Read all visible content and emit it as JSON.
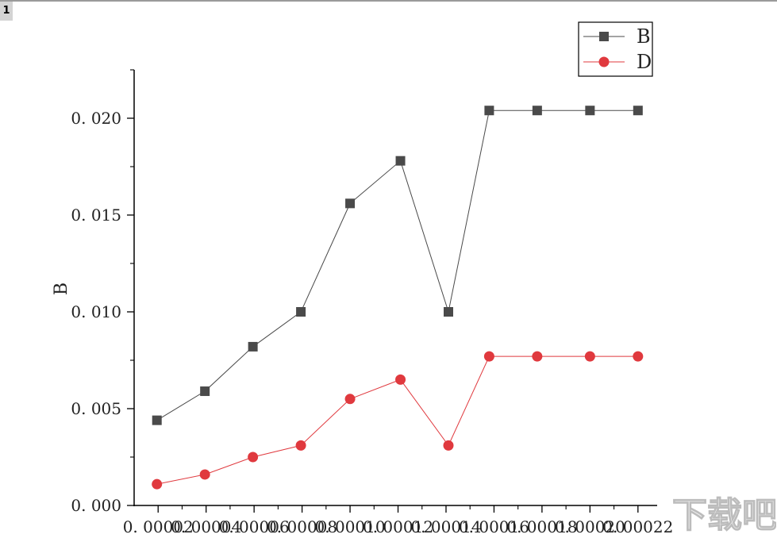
{
  "sheet_tab": "1",
  "chart_data": {
    "type": "line",
    "x": [
      2e-05,
      4e-05,
      6e-05,
      8e-05,
      0.0001,
      0.00012,
      0.00014,
      0.00016,
      0.00018,
      0.0002,
      0.00022
    ],
    "x_points": [
      1.95e-05,
      3.95e-05,
      5.95e-05,
      7.95e-05,
      0.0001,
      0.000121,
      0.000141,
      0.000158,
      0.000178,
      0.0002,
      0.00022
    ],
    "series": [
      {
        "name": "B",
        "color": "#4a4a4a",
        "marker": "square",
        "values": [
          0.0044,
          0.0059,
          0.0082,
          0.01,
          0.0156,
          0.0178,
          0.01,
          0.0204,
          0.0204,
          0.0204,
          0.0204
        ]
      },
      {
        "name": "D",
        "color": "#e0393e",
        "marker": "circle",
        "values": [
          0.0011,
          0.0016,
          0.0025,
          0.0031,
          0.0055,
          0.0065,
          0.0031,
          0.0077,
          0.0077,
          0.0077,
          0.0077
        ]
      }
    ],
    "ylabel": "B",
    "xlabel": "",
    "ylim": [
      0,
      0.0225
    ],
    "xlim": [
      1e-05,
      0.000228
    ],
    "yticks": [
      {
        "value": 0.0,
        "label": "0. 000"
      },
      {
        "value": 0.005,
        "label": "0. 005"
      },
      {
        "value": 0.01,
        "label": "0. 010"
      },
      {
        "value": 0.015,
        "label": "0. 015"
      },
      {
        "value": 0.02,
        "label": "0. 020"
      }
    ],
    "xticks": [
      {
        "value": 2e-05,
        "label": "0. 00002"
      },
      {
        "value": 4e-05,
        "label": "0. 00004"
      },
      {
        "value": 6e-05,
        "label": "0. 00006"
      },
      {
        "value": 8e-05,
        "label": "0. 00008"
      },
      {
        "value": 0.0001,
        "label": "0. 00010"
      },
      {
        "value": 0.00012,
        "label": "0. 00012"
      },
      {
        "value": 0.00014,
        "label": "0. 00014"
      },
      {
        "value": 0.00016,
        "label": "0. 00016"
      },
      {
        "value": 0.00018,
        "label": "0. 00018"
      },
      {
        "value": 0.0002,
        "label": "0. 00020"
      },
      {
        "value": 0.00022,
        "label": "0. 00022"
      }
    ],
    "legend_position": "top-right",
    "grid": false
  },
  "watermark": {
    "text": "下载吧"
  }
}
